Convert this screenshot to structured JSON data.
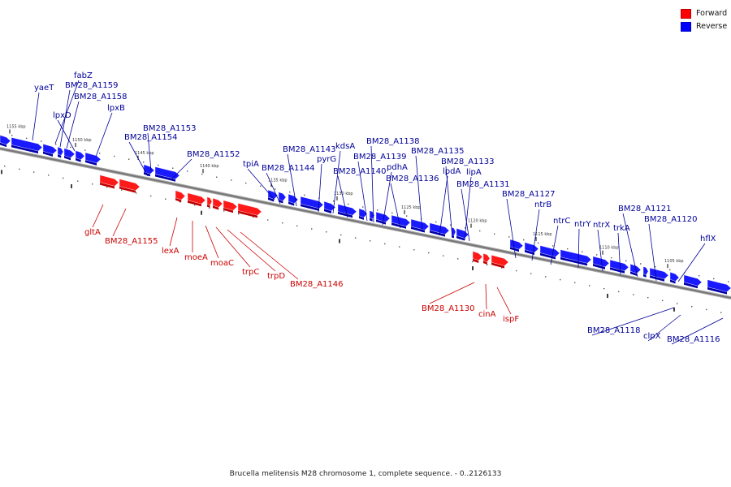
{
  "legend": {
    "forward": {
      "label": "Forward",
      "color": "#ff0000"
    },
    "reverse": {
      "label": "Reverse",
      "color": "#0000ff"
    }
  },
  "caption": "Brucella melitensis M28 chromosome 1, complete sequence. - 0..2126133",
  "colors": {
    "forward_fill": "#ff1a1a",
    "forward_side": "#c00000",
    "reverse_fill": "#1a1aff",
    "reverse_side": "#0000aa",
    "forward_label": "#cc0000",
    "reverse_label": "#000099",
    "backbone": "#777777"
  },
  "scale_ticks": [
    "1155 kbp",
    "1150 kbp",
    "1145 kbp",
    "1140 kbp",
    "1135 kbp",
    "1130 kbp",
    "1125 kbp",
    "1120 kbp",
    "1115 kbp",
    "1110 kbp",
    "1105 kbp"
  ],
  "reverse_genes": [
    {
      "name": "yaeT"
    },
    {
      "name": "fabZ"
    },
    {
      "name": "BM28_A1159"
    },
    {
      "name": "BM28_A1158"
    },
    {
      "name": "lpxD"
    },
    {
      "name": "lpxB"
    },
    {
      "name": "BM28_A1153"
    },
    {
      "name": "BM28_A1154"
    },
    {
      "name": "BM28_A1152"
    },
    {
      "name": "tpiA"
    },
    {
      "name": "BM28_A1144"
    },
    {
      "name": "BM28_A1143"
    },
    {
      "name": "pyrG"
    },
    {
      "name": "kdsA"
    },
    {
      "name": "BM28_A1140"
    },
    {
      "name": "BM28_A1139"
    },
    {
      "name": "BM28_A1138"
    },
    {
      "name": "pdhA"
    },
    {
      "name": "BM28_A1136"
    },
    {
      "name": "BM28_A1135"
    },
    {
      "name": "lpdA"
    },
    {
      "name": "BM28_A1133"
    },
    {
      "name": "lipA"
    },
    {
      "name": "BM28_A1131"
    },
    {
      "name": "BM28_A1127"
    },
    {
      "name": "ntrB"
    },
    {
      "name": "ntrC"
    },
    {
      "name": "ntrY"
    },
    {
      "name": "ntrX"
    },
    {
      "name": "trkA"
    },
    {
      "name": "BM28_A1121"
    },
    {
      "name": "BM28_A1120"
    },
    {
      "name": "hflX"
    },
    {
      "name": "BM28_A1118"
    },
    {
      "name": "clpX"
    },
    {
      "name": "BM28_A1116"
    }
  ],
  "forward_genes": [
    {
      "name": "gltA"
    },
    {
      "name": "BM28_A1155"
    },
    {
      "name": "lexA"
    },
    {
      "name": "moeA"
    },
    {
      "name": "moaC"
    },
    {
      "name": "trpC"
    },
    {
      "name": "trpD"
    },
    {
      "name": "BM28_A1146"
    },
    {
      "name": "BM28_A1130"
    },
    {
      "name": "cinA"
    },
    {
      "name": "ispF"
    }
  ]
}
